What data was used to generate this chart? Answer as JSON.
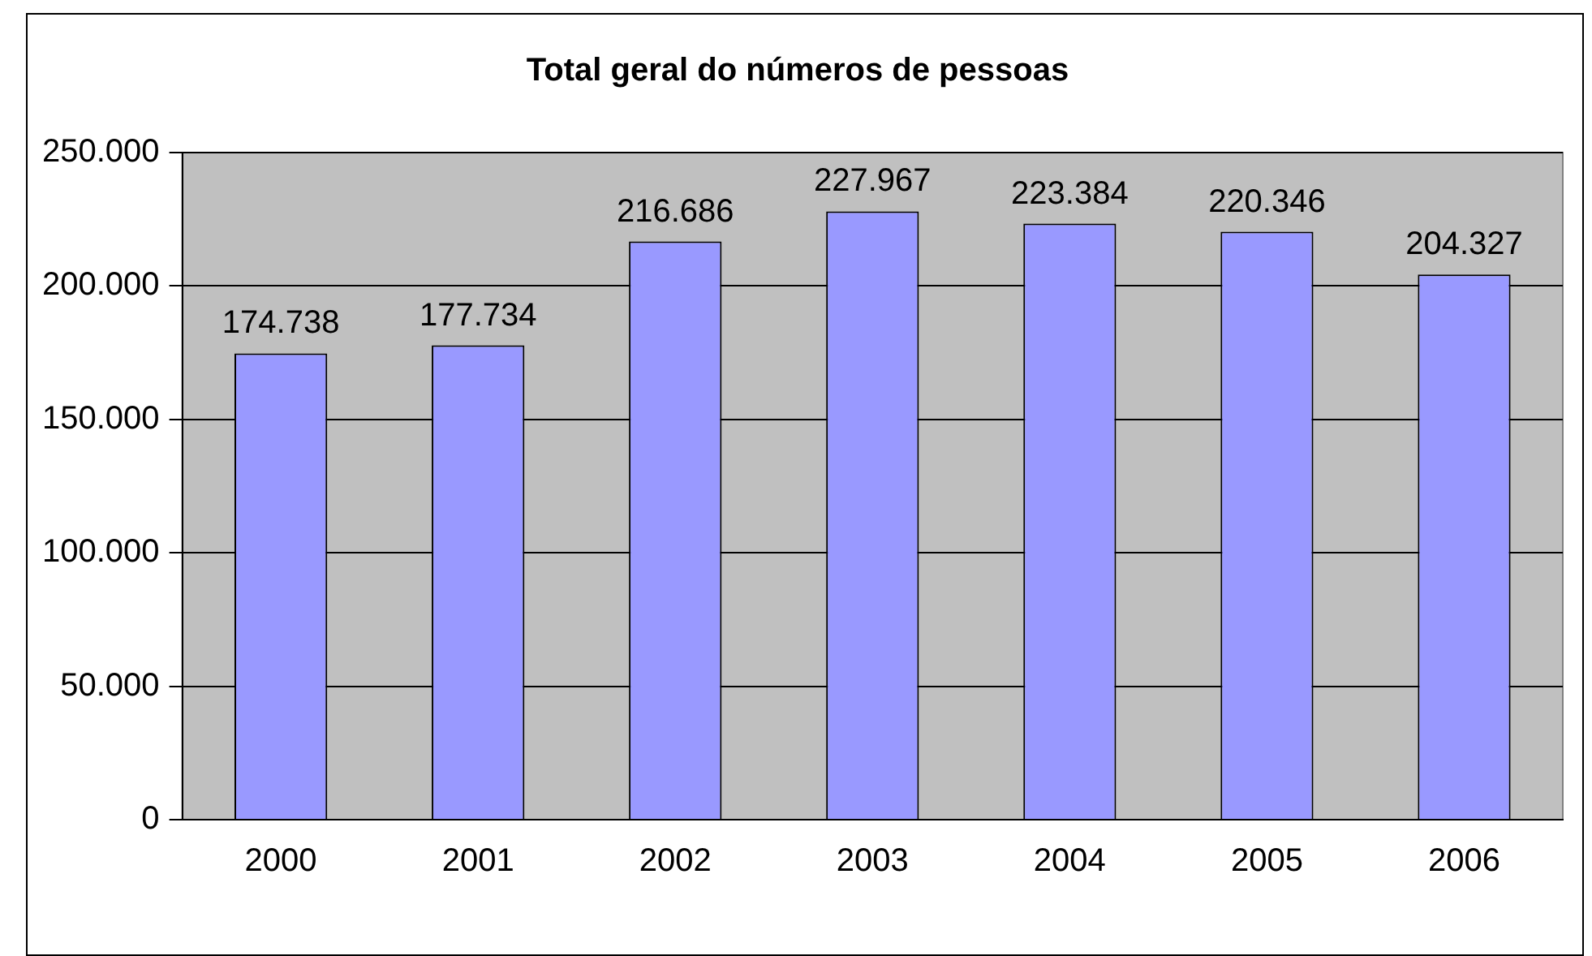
{
  "chart_data": {
    "type": "bar",
    "title": "Total geral do números de pessoas",
    "categories": [
      "2000",
      "2001",
      "2002",
      "2003",
      "2004",
      "2005",
      "2006"
    ],
    "values": [
      174738,
      177734,
      216686,
      227967,
      223384,
      220346,
      204327
    ],
    "value_labels": [
      "174.738",
      "177.734",
      "216.686",
      "227.967",
      "223.384",
      "220.346",
      "204.327"
    ],
    "color": "#9999ff",
    "ylim": [
      0,
      250000
    ],
    "yticks": [
      {
        "value": 0,
        "label": "0"
      },
      {
        "value": 50000,
        "label": "50.000"
      },
      {
        "value": 100000,
        "label": "100.000"
      },
      {
        "value": 150000,
        "label": "150.000"
      },
      {
        "value": 200000,
        "label": "200.000"
      },
      {
        "value": 250000,
        "label": "250.000"
      }
    ],
    "grid": "y",
    "legend": false
  }
}
